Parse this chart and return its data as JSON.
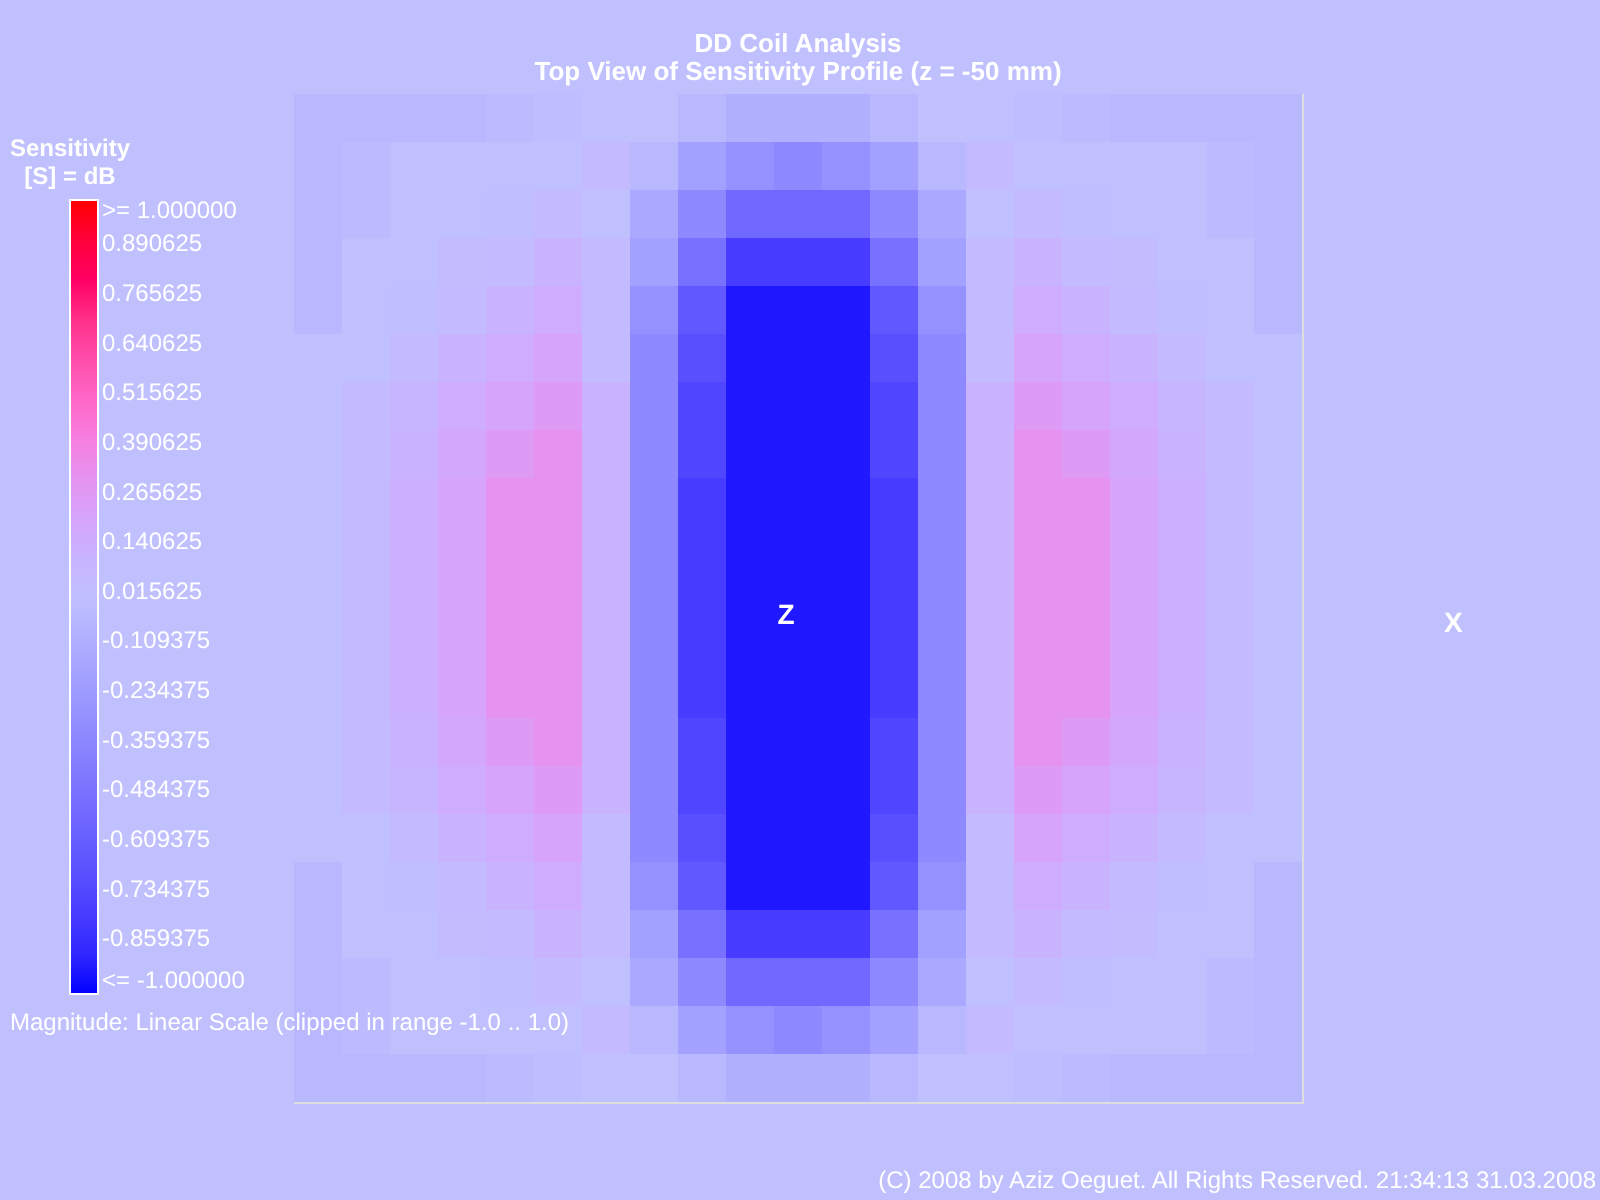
{
  "chart_data": {
    "type": "heatmap",
    "title": "DD Coil Analysis",
    "subtitle": "Top View of Sensitivity Profile (z = -50 mm)",
    "clabel": "Sensitivity\n[S] = dB",
    "categories": [
      null,
      null,
      null,
      null,
      null,
      null,
      null,
      null,
      null,
      null,
      null,
      null,
      null,
      null,
      null,
      null,
      null,
      null,
      null,
      null,
      null
    ],
    "y_categories": [
      null,
      null,
      null,
      null,
      null,
      null,
      null,
      null,
      null,
      null,
      null,
      null,
      null,
      null,
      null,
      null,
      null,
      null,
      null,
      null,
      null
    ],
    "cells": [
      [
        -0.05,
        -0.05,
        -0.05,
        -0.05,
        -0.03,
        -0.02,
        0,
        0,
        -0.05,
        -0.1,
        -0.1,
        -0.1,
        -0.05,
        0,
        0,
        -0.02,
        -0.03,
        -0.05,
        -0.05,
        -0.05,
        -0.05
      ],
      [
        -0.05,
        -0.03,
        0,
        0,
        0,
        0,
        0.05,
        -0.05,
        -0.2,
        -0.3,
        -0.35,
        -0.3,
        -0.2,
        -0.05,
        0.05,
        0,
        0,
        0,
        0,
        -0.03,
        -0.05
      ],
      [
        -0.05,
        -0.03,
        0,
        0,
        0.02,
        0.05,
        0,
        -0.15,
        -0.35,
        -0.55,
        -0.55,
        -0.55,
        -0.35,
        -0.15,
        0,
        0.05,
        0.02,
        0,
        0,
        -0.03,
        -0.05
      ],
      [
        -0.05,
        0,
        0,
        0.03,
        0.05,
        0.1,
        0.05,
        -0.2,
        -0.5,
        -0.8,
        -0.8,
        -0.8,
        -0.5,
        -0.2,
        0.05,
        0.1,
        0.05,
        0.03,
        0,
        0,
        -0.05
      ],
      [
        -0.05,
        0,
        0.02,
        0.05,
        0.1,
        0.15,
        0.05,
        -0.3,
        -0.65,
        -0.95,
        -0.95,
        -0.95,
        -0.65,
        -0.3,
        0.05,
        0.15,
        0.1,
        0.05,
        0.02,
        0,
        -0.05
      ],
      [
        0,
        0,
        0.05,
        0.1,
        0.15,
        0.2,
        0.05,
        -0.35,
        -0.7,
        -0.95,
        -0.95,
        -0.95,
        -0.7,
        -0.35,
        0.05,
        0.2,
        0.15,
        0.1,
        0.05,
        0,
        0
      ],
      [
        0,
        0.05,
        0.08,
        0.15,
        0.2,
        0.25,
        0.1,
        -0.35,
        -0.75,
        -0.95,
        -0.95,
        -0.95,
        -0.75,
        -0.35,
        0.1,
        0.25,
        0.2,
        0.15,
        0.08,
        0.05,
        0
      ],
      [
        0,
        0.05,
        0.1,
        0.18,
        0.25,
        0.3,
        0.1,
        -0.35,
        -0.75,
        -0.95,
        -0.95,
        -0.95,
        -0.75,
        -0.35,
        0.1,
        0.3,
        0.25,
        0.18,
        0.1,
        0.05,
        0
      ],
      [
        0,
        0.05,
        0.12,
        0.2,
        0.3,
        0.3,
        0.1,
        -0.35,
        -0.8,
        -0.95,
        -0.95,
        -0.95,
        -0.8,
        -0.35,
        0.1,
        0.3,
        0.3,
        0.2,
        0.12,
        0.05,
        0
      ],
      [
        0,
        0.05,
        0.12,
        0.2,
        0.3,
        0.3,
        0.1,
        -0.35,
        -0.8,
        -0.95,
        -0.95,
        -0.95,
        -0.8,
        -0.35,
        0.1,
        0.3,
        0.3,
        0.2,
        0.12,
        0.05,
        0
      ],
      [
        0,
        0.05,
        0.12,
        0.2,
        0.3,
        0.3,
        0.1,
        -0.35,
        -0.8,
        -0.95,
        -0.95,
        -0.95,
        -0.8,
        -0.35,
        0.1,
        0.3,
        0.3,
        0.2,
        0.12,
        0.05,
        0
      ],
      [
        0,
        0.05,
        0.12,
        0.2,
        0.3,
        0.3,
        0.1,
        -0.35,
        -0.8,
        -0.95,
        -0.95,
        -0.95,
        -0.8,
        -0.35,
        0.1,
        0.3,
        0.3,
        0.2,
        0.12,
        0.05,
        0
      ],
      [
        0,
        0.05,
        0.12,
        0.2,
        0.3,
        0.3,
        0.1,
        -0.35,
        -0.8,
        -0.95,
        -0.95,
        -0.95,
        -0.8,
        -0.35,
        0.1,
        0.3,
        0.3,
        0.2,
        0.12,
        0.05,
        0
      ],
      [
        0,
        0.05,
        0.1,
        0.18,
        0.25,
        0.3,
        0.1,
        -0.35,
        -0.75,
        -0.95,
        -0.95,
        -0.95,
        -0.75,
        -0.35,
        0.1,
        0.3,
        0.25,
        0.18,
        0.1,
        0.05,
        0
      ],
      [
        0,
        0.05,
        0.08,
        0.15,
        0.2,
        0.25,
        0.1,
        -0.35,
        -0.75,
        -0.95,
        -0.95,
        -0.95,
        -0.75,
        -0.35,
        0.1,
        0.25,
        0.2,
        0.15,
        0.08,
        0.05,
        0
      ],
      [
        0,
        0,
        0.05,
        0.1,
        0.15,
        0.2,
        0.05,
        -0.35,
        -0.7,
        -0.95,
        -0.95,
        -0.95,
        -0.7,
        -0.35,
        0.05,
        0.2,
        0.15,
        0.1,
        0.05,
        0,
        0
      ],
      [
        -0.05,
        0,
        0.02,
        0.05,
        0.1,
        0.15,
        0.05,
        -0.3,
        -0.65,
        -0.95,
        -0.95,
        -0.95,
        -0.65,
        -0.3,
        0.05,
        0.15,
        0.1,
        0.05,
        0.02,
        0,
        -0.05
      ],
      [
        -0.05,
        0,
        0,
        0.03,
        0.05,
        0.1,
        0.05,
        -0.2,
        -0.5,
        -0.8,
        -0.8,
        -0.8,
        -0.5,
        -0.2,
        0.05,
        0.1,
        0.05,
        0.03,
        0,
        0,
        -0.05
      ],
      [
        -0.05,
        -0.03,
        0,
        0,
        0.02,
        0.05,
        0,
        -0.15,
        -0.35,
        -0.55,
        -0.55,
        -0.55,
        -0.35,
        -0.15,
        0,
        0.05,
        0.02,
        0,
        0,
        -0.03,
        -0.05
      ],
      [
        -0.05,
        -0.03,
        0,
        0,
        0,
        0,
        0.05,
        -0.05,
        -0.2,
        -0.3,
        -0.35,
        -0.3,
        -0.2,
        -0.05,
        0.05,
        0,
        0,
        0,
        0,
        -0.03,
        -0.05
      ],
      [
        -0.05,
        -0.05,
        -0.05,
        -0.05,
        -0.03,
        -0.02,
        0,
        0,
        -0.05,
        -0.1,
        -0.1,
        -0.1,
        -0.05,
        0,
        0,
        -0.02,
        -0.03,
        -0.05,
        -0.05,
        -0.05,
        -0.05
      ]
    ],
    "clim": [
      -1,
      1
    ],
    "cticks": [
      {
        "value": 1,
        "label": ">= 1.000000"
      },
      0.890625,
      0.765625,
      0.640625,
      0.515625,
      0.390625,
      0.265625,
      0.140625,
      0.015625,
      -0.109375,
      -0.234375,
      -0.359375,
      -0.484375,
      -0.609375,
      -0.734375,
      -0.859375,
      {
        "value": -1,
        "label": "<= -1.000000"
      }
    ],
    "annotations": [
      "X",
      "Z",
      "Magnitude: Linear Scale (clipped in range -1.0  ..  1.0)",
      "(C) 2008 by Aziz Oeguet. All Rights Reserved.  21:34:13  31.03.2008"
    ]
  }
}
